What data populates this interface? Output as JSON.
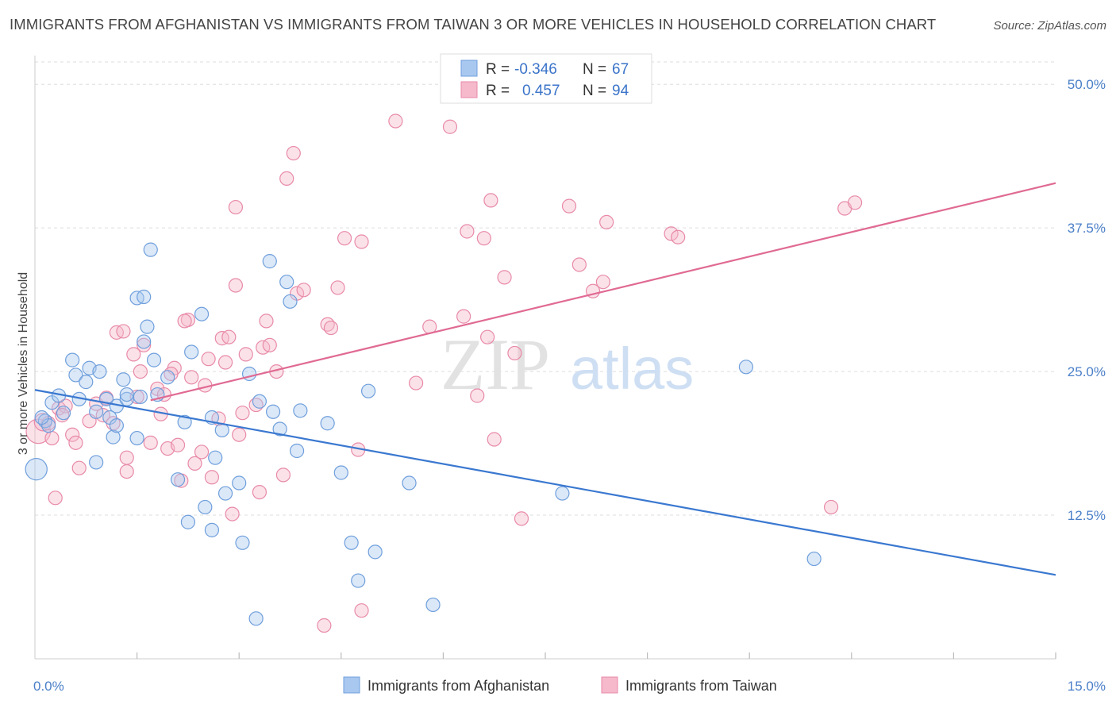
{
  "title": "IMMIGRANTS FROM AFGHANISTAN VS IMMIGRANTS FROM TAIWAN 3 OR MORE VEHICLES IN HOUSEHOLD CORRELATION CHART",
  "source": "Source: ZipAtlas.com",
  "watermark": {
    "zip": "ZIP",
    "atlas": "atlas"
  },
  "colors": {
    "afghanistan_fill": "#a9c8ef",
    "afghanistan_stroke": "#6f9fdc",
    "afghanistan_line": "#3a78d0",
    "taiwan_fill": "#f5b9cb",
    "taiwan_stroke": "#e88aa8",
    "taiwan_line": "#e06a93",
    "tick_label": "#4a7fc8",
    "grid": "#dddddd"
  },
  "legend": {
    "rows": [
      {
        "r_label": "R =",
        "r_value": "-0.346",
        "n_label": "N =",
        "n_value": "67"
      },
      {
        "r_label": "R =",
        "r_value": "0.457",
        "n_label": "N =",
        "n_value": "94"
      }
    ]
  },
  "bottom_legend": [
    "Immigrants from Afghanistan",
    "Immigrants from Taiwan"
  ],
  "chart_data": {
    "type": "scatter",
    "xlabel": "",
    "ylabel": "3 or more Vehicles in Household",
    "xlim": [
      0,
      15
    ],
    "ylim": [
      0,
      52.5
    ],
    "x_tick_labels": [
      "0.0%",
      "15.0%"
    ],
    "y_ticks": [
      12.5,
      25.0,
      37.5,
      50.0
    ],
    "y_tick_labels": [
      "12.5%",
      "25.0%",
      "37.5%",
      "50.0%"
    ],
    "grid": true,
    "legend_position": "top-center",
    "series": [
      {
        "name": "Immigrants from Afghanistan",
        "trend": {
          "x": [
            0,
            15
          ],
          "y": [
            23.4,
            7.3
          ]
        },
        "points": [
          [
            0.02,
            16.5,
            1.6
          ],
          [
            0.15,
            20.7,
            1
          ],
          [
            0.2,
            20.3,
            1
          ],
          [
            0.25,
            22.3,
            1
          ],
          [
            0.35,
            22.9,
            1
          ],
          [
            0.42,
            21.4,
            1
          ],
          [
            0.55,
            26.0,
            1
          ],
          [
            0.6,
            24.7,
            1
          ],
          [
            0.65,
            22.6,
            1
          ],
          [
            0.75,
            24.1,
            1
          ],
          [
            0.8,
            25.3,
            1
          ],
          [
            0.9,
            21.5,
            1
          ],
          [
            0.9,
            17.1,
            1
          ],
          [
            0.95,
            25.0,
            1
          ],
          [
            1.05,
            22.6,
            1
          ],
          [
            1.1,
            21.0,
            1
          ],
          [
            1.15,
            19.3,
            1
          ],
          [
            1.2,
            20.3,
            1
          ],
          [
            1.2,
            22.0,
            1
          ],
          [
            1.3,
            24.3,
            1
          ],
          [
            1.35,
            22.6,
            1
          ],
          [
            1.35,
            23.0,
            1
          ],
          [
            1.5,
            19.2,
            1
          ],
          [
            1.5,
            31.4,
            1
          ],
          [
            1.55,
            22.8,
            1
          ],
          [
            1.6,
            27.6,
            1
          ],
          [
            1.6,
            31.5,
            1
          ],
          [
            1.65,
            28.9,
            1
          ],
          [
            1.7,
            35.6,
            1
          ],
          [
            1.75,
            26.0,
            1
          ],
          [
            1.8,
            23.0,
            1
          ],
          [
            1.95,
            24.5,
            1
          ],
          [
            2.1,
            15.6,
            1
          ],
          [
            2.2,
            20.6,
            1
          ],
          [
            2.25,
            11.9,
            1
          ],
          [
            2.3,
            26.7,
            1
          ],
          [
            2.45,
            30.0,
            1
          ],
          [
            2.5,
            13.2,
            1
          ],
          [
            2.6,
            11.2,
            1
          ],
          [
            2.6,
            21.0,
            1
          ],
          [
            2.65,
            17.5,
            1
          ],
          [
            2.75,
            19.9,
            1
          ],
          [
            2.8,
            14.4,
            1
          ],
          [
            3.0,
            15.3,
            1
          ],
          [
            3.05,
            10.1,
            1
          ],
          [
            3.15,
            24.8,
            1
          ],
          [
            3.25,
            3.5,
            1
          ],
          [
            3.3,
            22.4,
            1
          ],
          [
            3.45,
            34.6,
            1
          ],
          [
            3.5,
            21.5,
            1
          ],
          [
            3.6,
            20.0,
            1
          ],
          [
            3.7,
            32.8,
            1
          ],
          [
            3.75,
            31.1,
            1
          ],
          [
            3.85,
            18.1,
            1
          ],
          [
            3.9,
            21.6,
            1
          ],
          [
            4.3,
            20.5,
            1
          ],
          [
            4.5,
            16.2,
            1
          ],
          [
            4.65,
            10.1,
            1
          ],
          [
            4.75,
            6.8,
            1
          ],
          [
            4.9,
            23.3,
            1
          ],
          [
            5.0,
            9.3,
            1
          ],
          [
            5.5,
            15.3,
            1
          ],
          [
            5.85,
            4.7,
            1
          ],
          [
            7.75,
            14.4,
            1
          ],
          [
            10.45,
            25.4,
            1
          ],
          [
            11.45,
            8.7,
            1
          ],
          [
            0.1,
            21.0,
            1
          ]
        ]
      },
      {
        "name": "Immigrants from Taiwan",
        "trend": {
          "x": [
            1.7,
            15
          ],
          "y": [
            22.5,
            41.4
          ]
        },
        "points": [
          [
            0.05,
            19.8,
            1.8
          ],
          [
            0.12,
            20.6,
            1.3
          ],
          [
            0.2,
            20.5,
            1
          ],
          [
            0.3,
            14.0,
            1
          ],
          [
            0.35,
            21.8,
            1
          ],
          [
            0.45,
            22.0,
            1
          ],
          [
            0.55,
            19.5,
            1
          ],
          [
            0.6,
            18.8,
            1
          ],
          [
            0.65,
            16.6,
            1
          ],
          [
            0.8,
            20.7,
            1
          ],
          [
            0.9,
            22.2,
            1
          ],
          [
            1.0,
            21.2,
            1
          ],
          [
            1.05,
            22.7,
            1
          ],
          [
            1.2,
            28.4,
            1
          ],
          [
            1.3,
            28.5,
            1
          ],
          [
            1.35,
            17.5,
            1
          ],
          [
            1.45,
            26.5,
            1
          ],
          [
            1.5,
            22.8,
            1
          ],
          [
            1.55,
            25.0,
            1
          ],
          [
            1.6,
            27.3,
            1
          ],
          [
            1.7,
            18.8,
            1
          ],
          [
            1.8,
            23.5,
            1
          ],
          [
            1.85,
            21.3,
            1
          ],
          [
            1.9,
            23.0,
            1
          ],
          [
            1.95,
            18.3,
            1
          ],
          [
            2.05,
            25.3,
            1
          ],
          [
            2.1,
            18.6,
            1
          ],
          [
            2.15,
            15.5,
            1
          ],
          [
            2.25,
            29.5,
            1
          ],
          [
            2.3,
            24.5,
            1
          ],
          [
            2.35,
            17.0,
            1
          ],
          [
            2.45,
            18.0,
            1
          ],
          [
            2.5,
            23.8,
            1
          ],
          [
            2.55,
            26.1,
            1
          ],
          [
            2.6,
            15.8,
            1
          ],
          [
            2.7,
            20.9,
            1
          ],
          [
            2.75,
            27.9,
            1
          ],
          [
            2.8,
            25.8,
            1
          ],
          [
            2.85,
            28.0,
            1
          ],
          [
            2.9,
            12.6,
            1
          ],
          [
            2.95,
            39.3,
            1
          ],
          [
            2.95,
            32.5,
            1
          ],
          [
            3.05,
            21.4,
            1
          ],
          [
            3.1,
            26.5,
            1
          ],
          [
            3.25,
            22.1,
            1
          ],
          [
            3.3,
            14.5,
            1
          ],
          [
            3.35,
            27.1,
            1
          ],
          [
            3.4,
            29.4,
            1
          ],
          [
            3.45,
            27.3,
            1
          ],
          [
            3.55,
            25.0,
            1
          ],
          [
            3.65,
            16.0,
            1
          ],
          [
            3.7,
            41.8,
            1
          ],
          [
            3.8,
            44.0,
            1
          ],
          [
            3.85,
            31.8,
            1
          ],
          [
            3.95,
            32.1,
            1
          ],
          [
            4.3,
            29.1,
            1
          ],
          [
            4.35,
            28.8,
            1
          ],
          [
            4.45,
            32.3,
            1
          ],
          [
            4.55,
            36.6,
            1
          ],
          [
            4.75,
            18.2,
            1
          ],
          [
            4.8,
            36.3,
            1
          ],
          [
            5.3,
            46.8,
            1
          ],
          [
            5.6,
            24.0,
            1
          ],
          [
            5.8,
            28.9,
            1
          ],
          [
            6.1,
            46.3,
            1
          ],
          [
            6.3,
            29.8,
            1
          ],
          [
            6.35,
            37.2,
            1
          ],
          [
            6.5,
            22.9,
            1
          ],
          [
            6.6,
            36.6,
            1
          ],
          [
            6.65,
            28.0,
            1
          ],
          [
            6.7,
            39.9,
            1
          ],
          [
            6.75,
            19.1,
            1
          ],
          [
            6.9,
            33.2,
            1
          ],
          [
            7.05,
            26.6,
            1
          ],
          [
            7.15,
            12.2,
            1
          ],
          [
            7.85,
            39.4,
            1
          ],
          [
            8.0,
            34.3,
            1
          ],
          [
            8.2,
            32.0,
            1
          ],
          [
            8.35,
            32.8,
            1
          ],
          [
            8.4,
            38.0,
            1
          ],
          [
            9.35,
            37.0,
            1
          ],
          [
            9.45,
            36.7,
            1
          ],
          [
            11.7,
            13.2,
            1
          ],
          [
            11.9,
            39.2,
            1
          ],
          [
            12.05,
            39.7,
            1
          ],
          [
            1.35,
            16.3,
            1
          ],
          [
            0.4,
            21.2,
            1
          ],
          [
            2.0,
            24.8,
            1
          ],
          [
            3.0,
            19.5,
            1
          ],
          [
            4.25,
            2.9,
            1
          ],
          [
            4.8,
            4.2,
            1
          ],
          [
            2.2,
            29.4,
            1
          ],
          [
            1.15,
            20.5,
            1
          ],
          [
            0.25,
            19.2,
            1
          ]
        ]
      }
    ]
  }
}
